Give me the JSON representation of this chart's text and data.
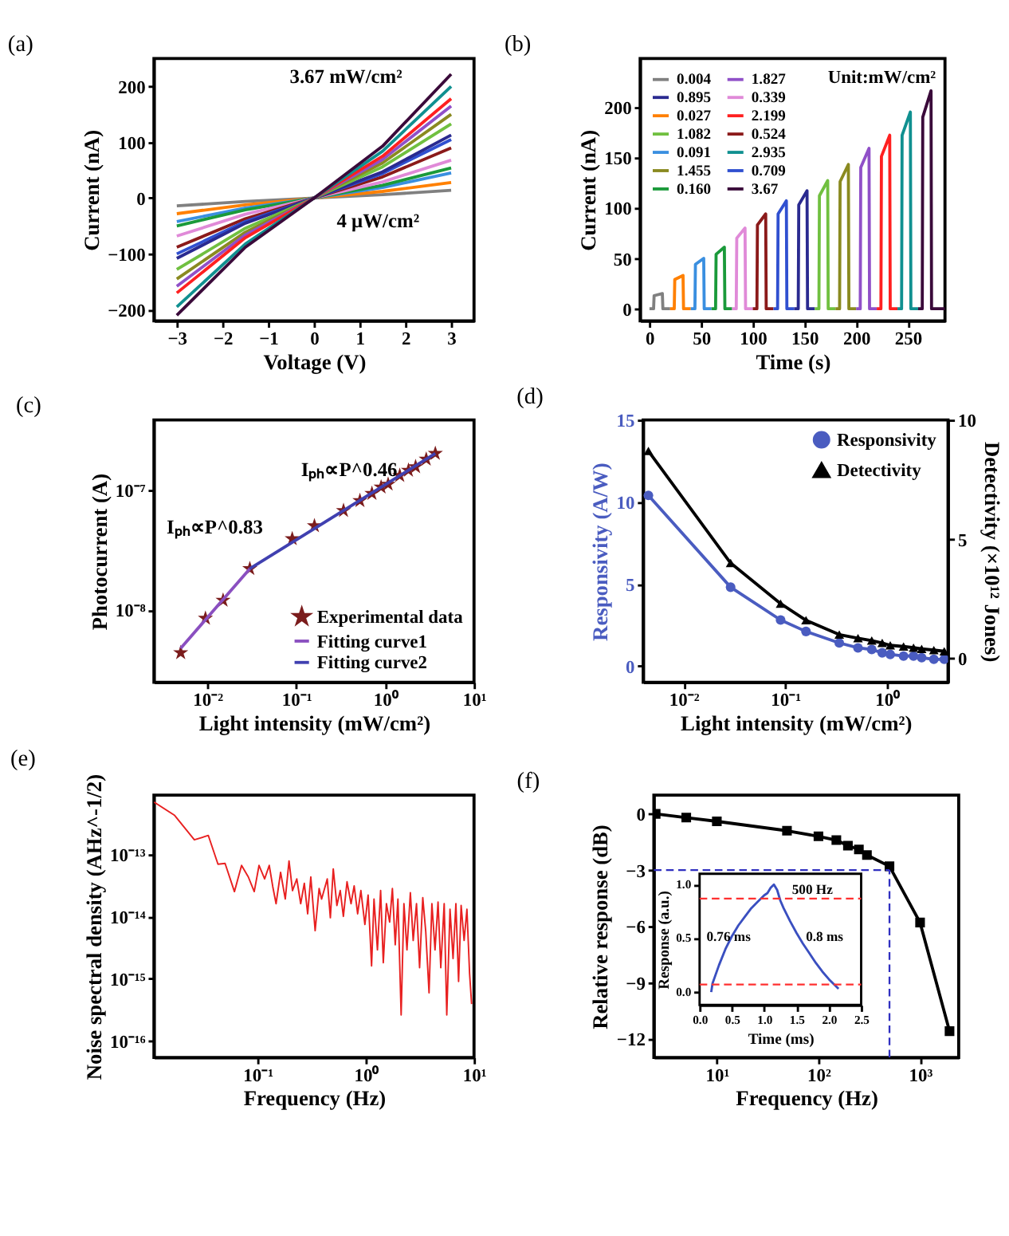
{
  "chart_data": [
    {
      "type": "line",
      "title": "(a)",
      "xlabel": "Voltage (V)",
      "ylabel": "Current (nA)",
      "x": [
        -3,
        -1.5,
        0,
        1.5,
        3
      ],
      "xlim": [
        -3.5,
        3.5
      ],
      "ylim": [
        -220,
        250
      ],
      "xticks": [
        -3,
        -2,
        -1,
        0,
        1,
        2,
        3
      ],
      "yticks": [
        -200,
        -100,
        0,
        100,
        200
      ],
      "series": [
        {
          "color": "#808080",
          "values": [
            -14,
            -6,
            0,
            6,
            14
          ]
        },
        {
          "color": "#ff8000",
          "values": [
            -28,
            -12,
            0,
            12,
            28
          ]
        },
        {
          "color": "#3a8fe0",
          "values": [
            -42,
            -18,
            0,
            19,
            45
          ]
        },
        {
          "color": "#1a9a3a",
          "values": [
            -50,
            -21,
            0,
            23,
            54
          ]
        },
        {
          "color": "#e08ad8",
          "values": [
            -68,
            -29,
            0,
            29,
            68
          ]
        },
        {
          "color": "#8b1a1a",
          "values": [
            -88,
            -37,
            0,
            38,
            90
          ]
        },
        {
          "color": "#3050d0",
          "values": [
            -100,
            -42,
            0,
            44,
            105
          ]
        },
        {
          "color": "#2a2a90",
          "values": [
            -108,
            -45,
            0,
            47,
            113
          ]
        },
        {
          "color": "#70c040",
          "values": [
            -128,
            -54,
            0,
            56,
            133
          ]
        },
        {
          "color": "#8a8a20",
          "values": [
            -145,
            -61,
            0,
            63,
            150
          ]
        },
        {
          "color": "#9050c8",
          "values": [
            -158,
            -66,
            0,
            69,
            165
          ]
        },
        {
          "color": "#ff2020",
          "values": [
            -170,
            -71,
            0,
            75,
            178
          ]
        },
        {
          "color": "#109090",
          "values": [
            -195,
            -82,
            0,
            84,
            200
          ]
        },
        {
          "color": "#3a0a3a",
          "values": [
            -210,
            -88,
            0,
            93,
            222
          ]
        }
      ],
      "annotations": [
        "3.67 mW/cm²",
        "4 μW/cm²"
      ]
    },
    {
      "type": "line",
      "title": "(b)",
      "xlabel": "Time (s)",
      "ylabel": "Current (nA)",
      "xlim": [
        -9,
        286
      ],
      "ylim": [
        -12,
        248
      ],
      "xticks": [
        0,
        50,
        100,
        150,
        200,
        250
      ],
      "yticks": [
        0,
        50,
        100,
        150,
        200
      ],
      "legend": "top left",
      "series": [
        {
          "name": "0.004",
          "color": "#808080",
          "x": [
            0,
            4,
            4.5,
            12.5,
            13,
            20
          ],
          "values": [
            0,
            0,
            13,
            15,
            0,
            0
          ]
        },
        {
          "name": "0.027",
          "color": "#ff8000",
          "x": [
            20,
            24,
            24.5,
            32.5,
            33,
            40
          ],
          "values": [
            0,
            0,
            29,
            33,
            0,
            0
          ]
        },
        {
          "name": "0.091",
          "color": "#3a8fe0",
          "x": [
            40,
            44,
            44.5,
            52.5,
            53,
            60
          ],
          "values": [
            0,
            0,
            44,
            50,
            0,
            0
          ]
        },
        {
          "name": "0.160",
          "color": "#1a9a3a",
          "x": [
            60,
            64,
            64.5,
            72.5,
            73,
            80
          ],
          "values": [
            0,
            0,
            54,
            61,
            0,
            0
          ]
        },
        {
          "name": "0.339",
          "color": "#e08ad8",
          "x": [
            80,
            84,
            84.5,
            92.5,
            93,
            100
          ],
          "values": [
            0,
            0,
            70,
            80,
            0,
            0
          ]
        },
        {
          "name": "0.524",
          "color": "#8b1a1a",
          "x": [
            100,
            104,
            104.5,
            112.5,
            113,
            120
          ],
          "values": [
            0,
            0,
            83,
            94,
            0,
            0
          ]
        },
        {
          "name": "0.709",
          "color": "#3050d0",
          "x": [
            120,
            124,
            124.5,
            132.5,
            133,
            140
          ],
          "values": [
            0,
            0,
            94,
            107,
            0,
            0
          ]
        },
        {
          "name": "0.895",
          "color": "#2a2a90",
          "x": [
            140,
            144,
            144.5,
            152.5,
            153,
            160
          ],
          "values": [
            0,
            0,
            103,
            117,
            0,
            0
          ]
        },
        {
          "name": "1.082",
          "color": "#70c040",
          "x": [
            160,
            164,
            164.5,
            172.5,
            173,
            180
          ],
          "values": [
            0,
            0,
            112,
            127,
            0,
            0
          ]
        },
        {
          "name": "1.455",
          "color": "#8a8a20",
          "x": [
            180,
            184,
            184.5,
            192.5,
            193,
            200
          ],
          "values": [
            0,
            0,
            126,
            143,
            0,
            0
          ]
        },
        {
          "name": "1.827",
          "color": "#9050c8",
          "x": [
            200,
            204,
            204.5,
            212.5,
            213,
            220
          ],
          "values": [
            0,
            0,
            140,
            159,
            0,
            0
          ]
        },
        {
          "name": "2.199",
          "color": "#ff2020",
          "x": [
            220,
            224,
            224.5,
            232.5,
            233,
            240
          ],
          "values": [
            0,
            0,
            151,
            172,
            0,
            0
          ]
        },
        {
          "name": "2.935",
          "color": "#109090",
          "x": [
            240,
            244,
            244.5,
            252.5,
            253,
            260
          ],
          "values": [
            0,
            0,
            172,
            195,
            0,
            0
          ]
        },
        {
          "name": "3.67",
          "color": "#3a0a3a",
          "x": [
            260,
            264,
            264.5,
            272.5,
            273,
            286
          ],
          "values": [
            0,
            0,
            190,
            216,
            0,
            0
          ]
        }
      ],
      "annotations": [
        "Unit:mW/cm²"
      ]
    },
    {
      "type": "scatter",
      "title": "(c)",
      "xlabel": "Light intensity (mW/cm²)",
      "ylabel": "Photocurrent (A)",
      "log": "xy",
      "xlim": [
        0.0025,
        10
      ],
      "ylim": [
        2.5e-09,
        3.8e-07
      ],
      "xticks": [
        {
          "value": 0.01,
          "label": "10⁻²"
        },
        {
          "value": 0.1,
          "label": "10⁻¹"
        },
        {
          "value": 1,
          "label": "10⁰"
        },
        {
          "value": 10,
          "label": "10¹"
        }
      ],
      "yticks": [
        {
          "value": 1e-08,
          "label": "10⁻⁸"
        },
        {
          "value": 1e-07,
          "label": "10⁻⁷"
        }
      ],
      "legend": "bottom right",
      "series": [
        {
          "name": "Experimental data",
          "color": "#7b1c1c",
          "marker": "star",
          "x": [
            0.005,
            0.0095,
            0.015,
            0.03,
            0.09,
            0.16,
            0.34,
            0.52,
            0.71,
            0.9,
            1.08,
            1.46,
            1.83,
            2.2,
            2.9,
            3.67
          ],
          "values": [
            4.4e-09,
            8.5e-09,
            1.2e-08,
            2.2e-08,
            3.9e-08,
            5e-08,
            6.7e-08,
            8.1e-08,
            9.3e-08,
            1.05e-07,
            1.11e-07,
            1.31e-07,
            1.45e-07,
            1.55e-07,
            1.79e-07,
            2e-07
          ]
        },
        {
          "name": "Fitting curve1",
          "color": "#8a4fc0",
          "type": "line",
          "x": [
            0.005,
            0.03
          ],
          "values": [
            4.8e-09,
            2.2e-08
          ]
        },
        {
          "name": "Fitting curve2",
          "color": "#4040b0",
          "type": "line",
          "x": [
            0.03,
            3.67
          ],
          "values": [
            2.2e-08,
            2e-07
          ]
        }
      ],
      "annotations": [
        "Iₚₕ∝P^0.83",
        "Iₚₕ∝P^0.46"
      ]
    },
    {
      "type": "line",
      "title": "(d)",
      "xlabel": "Light intensity (mW/cm²)",
      "ylabel": "Responsivity (A/W)",
      "y2label": "Detectivity (×10¹² Jones)",
      "log": "x",
      "xlim": [
        0.004,
        4
      ],
      "ylim": [
        -1,
        15
      ],
      "y2lim": [
        -1,
        10
      ],
      "xticks": [
        {
          "value": 0.01,
          "label": "10⁻²"
        },
        {
          "value": 0.1,
          "label": "10⁻¹"
        },
        {
          "value": 1,
          "label": "10⁰"
        }
      ],
      "yticks": [
        0,
        5,
        10,
        15
      ],
      "y2ticks": [
        0,
        5,
        10
      ],
      "legend": "top right",
      "x": [
        0.0045,
        0.029,
        0.09,
        0.16,
        0.34,
        0.52,
        0.71,
        0.9,
        1.08,
        1.46,
        1.83,
        2.2,
        2.9,
        3.67
      ],
      "series": [
        {
          "name": "Responsivity",
          "color": "#4a5cc0",
          "marker": "circle",
          "values": [
            10.4,
            4.8,
            2.8,
            2.1,
            1.4,
            1.1,
            1.0,
            0.8,
            0.7,
            0.6,
            0.6,
            0.5,
            0.4,
            0.4
          ]
        },
        {
          "name": "Detectivity",
          "color": "#000000",
          "marker": "triangle",
          "axis": "y2",
          "values": [
            8.7,
            4.0,
            2.3,
            1.6,
            1.0,
            0.85,
            0.75,
            0.65,
            0.55,
            0.5,
            0.45,
            0.4,
            0.35,
            0.3
          ]
        }
      ]
    },
    {
      "type": "line",
      "title": "(e)",
      "xlabel": "Frequency (Hz)",
      "ylabel": "Noise spectral density (AHz^-1/2)",
      "log": "xy",
      "xlim": [
        0.011,
        10
      ],
      "ylim": [
        5.4e-17,
        8.9e-13
      ],
      "xticks": [
        {
          "value": 0.1,
          "label": "10⁻¹"
        },
        {
          "value": 1,
          "label": "10⁰"
        },
        {
          "value": 10,
          "label": "10¹"
        }
      ],
      "yticks": [
        {
          "value": 1e-16,
          "label": "10⁻¹⁶"
        },
        {
          "value": 1e-15,
          "label": "10⁻¹⁵"
        },
        {
          "value": 1e-14,
          "label": "10⁻¹⁴"
        },
        {
          "value": 1e-13,
          "label": "10⁻¹³"
        }
      ],
      "series": [
        {
          "color": "#e82020",
          "x": [
            0.011,
            0.0171,
            0.026,
            0.035,
            0.043,
            0.05,
            0.061,
            0.071,
            0.082,
            0.093,
            0.103,
            0.116,
            0.128,
            0.138,
            0.148,
            0.163,
            0.18,
            0.195,
            0.21,
            0.23,
            0.25,
            0.27,
            0.29,
            0.31,
            0.34,
            0.37,
            0.39,
            0.44,
            0.47,
            0.5,
            0.54,
            0.58,
            0.62,
            0.67,
            0.73,
            0.78,
            0.84,
            0.9,
            0.98,
            1.05,
            1.13,
            1.19,
            1.28,
            1.37,
            1.45,
            1.55,
            1.66,
            1.76,
            1.87,
            1.98,
            2.12,
            2.25,
            2.4,
            2.58,
            2.74,
            2.94,
            3.14,
            3.36,
            3.58,
            3.84,
            4.08,
            4.36,
            4.65,
            4.93,
            5.3,
            5.6,
            6.0,
            6.4,
            6.8,
            7.2,
            7.6,
            8.1,
            8.6,
            9.1,
            9.5
          ],
          "values": [
            6.9e-13,
            4.2e-13,
            1.7e-13,
            2e-13,
            6.9e-14,
            7.1e-14,
            2.5e-14,
            6.6e-14,
            4.3e-14,
            2.5e-14,
            6.6e-14,
            4e-14,
            6.6e-14,
            3e-14,
            1.6e-14,
            5.1e-14,
            1.9e-14,
            7.8e-14,
            2.6e-14,
            4e-14,
            1.6e-14,
            3.4e-14,
            1.1e-14,
            4.3e-14,
            5.9e-15,
            2.8e-14,
            1.9e-14,
            4e-14,
            9.5e-15,
            5.8e-14,
            1.5e-14,
            2.6e-14,
            1e-14,
            3.6e-14,
            1.6e-14,
            3.1e-14,
            1.1e-14,
            2.6e-14,
            7.4e-15,
            2.2e-14,
            1.6e-15,
            1.9e-14,
            2.9e-15,
            2.6e-14,
            1.8e-15,
            1.6e-14,
            8.1e-15,
            2.8e-14,
            3.5e-15,
            1.9e-14,
            2.6e-16,
            1.6e-14,
            2.9e-15,
            2.4e-14,
            4.1e-15,
            1.6e-14,
            1.5e-15,
            2e-14,
            5.7e-15,
            5.9e-16,
            1.6e-14,
            2.9e-15,
            1.7e-14,
            1.5e-15,
            1.6e-14,
            2.6e-16,
            1.3e-14,
            2.1e-15,
            1.6e-14,
            9e-16,
            1.5e-14,
            4.1e-15,
            1.3e-14,
            1.2e-15,
            3.9e-16
          ]
        }
      ]
    },
    {
      "type": "line",
      "title": "(f)",
      "xlabel": "Frequency (Hz)",
      "ylabel": "Relative response (dB)",
      "log": "x",
      "xlim": [
        2.4,
        2400
      ],
      "ylim": [
        -13,
        1
      ],
      "marker": "square",
      "xticks": [
        {
          "value": 10,
          "label": "10¹"
        },
        {
          "value": 100,
          "label": "10²"
        },
        {
          "value": 1000,
          "label": "10³"
        }
      ],
      "yticks": [
        -12,
        -9,
        -6,
        -3,
        0
      ],
      "series": [
        {
          "color": "#000000",
          "x": [
            2.5,
            5,
            10,
            49,
            100,
            150,
            195,
            250,
            300,
            500,
            1000,
            1950
          ],
          "values": [
            0,
            -0.2,
            -0.4,
            -0.9,
            -1.2,
            -1.4,
            -1.7,
            -1.9,
            -2.2,
            -2.8,
            -5.8,
            -11.6
          ]
        }
      ],
      "ref_lines": [
        {
          "axis": "y",
          "value": -3,
          "color": "#3030c0",
          "line_style": "dashed"
        },
        {
          "axis": "x",
          "value": 500,
          "color": "#3030c0",
          "line_style": "dashed"
        }
      ]
    },
    {
      "type": "line",
      "xlabel": "Time (ms)",
      "ylabel": "Response (a.u.)",
      "xlim": [
        0,
        2.5
      ],
      "ylim": [
        -0.12,
        1.1
      ],
      "xticks": [
        {
          "value": 0,
          "label": "0.0"
        },
        {
          "value": 0.5,
          "label": "0.5"
        },
        {
          "value": 1,
          "label": "1.0"
        },
        {
          "value": 1.5,
          "label": "1.5"
        },
        {
          "value": 2,
          "label": "2.0"
        },
        {
          "value": 2.5,
          "label": "2.5"
        }
      ],
      "yticks": [
        {
          "value": 0,
          "label": "0.0"
        },
        {
          "value": 0.5,
          "label": "0.5"
        },
        {
          "value": 1,
          "label": "1.0"
        }
      ],
      "series": [
        {
          "color": "#3a4fc0",
          "x": [
            0.18,
            0.2,
            0.3,
            0.4,
            0.5,
            0.6,
            0.7,
            0.8,
            0.9,
            1.0,
            1.05,
            1.1,
            1.15,
            1.2,
            1.25,
            1.3,
            1.4,
            1.5,
            1.6,
            1.7,
            1.8,
            1.9,
            2.0,
            2.1,
            2.15
          ],
          "values": [
            0.0,
            0.08,
            0.25,
            0.4,
            0.52,
            0.62,
            0.7,
            0.78,
            0.84,
            0.9,
            0.92,
            0.97,
            1.0,
            0.95,
            0.85,
            0.78,
            0.66,
            0.55,
            0.45,
            0.36,
            0.27,
            0.19,
            0.12,
            0.06,
            0.03
          ]
        }
      ],
      "ref_lines": [
        {
          "axis": "y",
          "value": 0.87,
          "color": "#ff3030",
          "line_style": "dashed"
        },
        {
          "axis": "y",
          "value": 0.07,
          "color": "#ff3030",
          "line_style": "dashed"
        }
      ],
      "annotations": [
        "500 Hz",
        "0.76 ms",
        "0.8 ms"
      ]
    }
  ]
}
